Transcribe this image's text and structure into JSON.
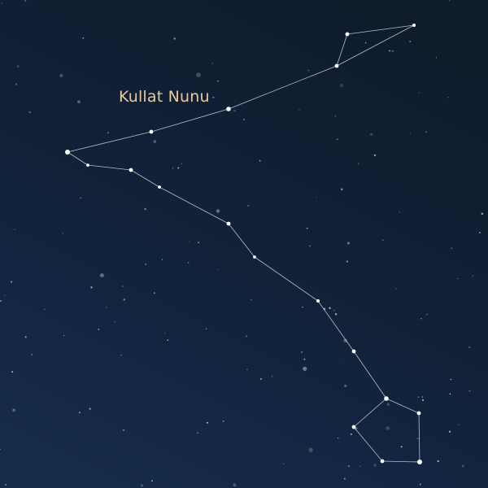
{
  "constellation": {
    "name": "Kullat Nunu",
    "label_color": "#e8c9a1",
    "line_color": "#cfdce8",
    "star_color": "#ffffff"
  },
  "background": {
    "top_color": "#0f1c2c",
    "bottom_color": "#162a4a"
  }
}
